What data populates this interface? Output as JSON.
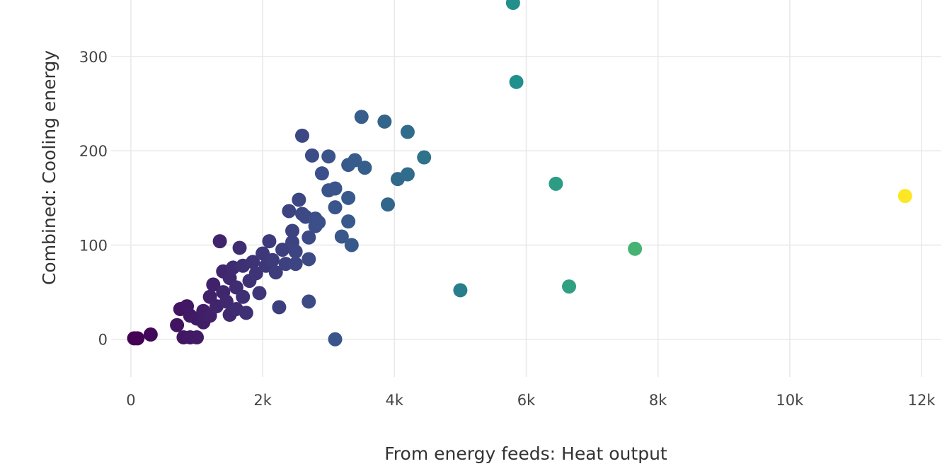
{
  "chart_data": {
    "type": "scatter",
    "xlabel": "From energy feeds: Heat output",
    "ylabel": "Combined: Cooling energy",
    "xlim": [
      -300,
      12300
    ],
    "ylim": [
      -40,
      360
    ],
    "grid": true,
    "x_ticks": [
      {
        "value": 0,
        "label": "0"
      },
      {
        "value": 2000,
        "label": "2k"
      },
      {
        "value": 4000,
        "label": "4k"
      },
      {
        "value": 6000,
        "label": "6k"
      },
      {
        "value": 8000,
        "label": "8k"
      },
      {
        "value": 10000,
        "label": "10k"
      },
      {
        "value": 12000,
        "label": "12k"
      }
    ],
    "y_ticks": [
      {
        "value": 0,
        "label": "0"
      },
      {
        "value": 100,
        "label": "100"
      },
      {
        "value": 200,
        "label": "200"
      },
      {
        "value": 300,
        "label": "300"
      }
    ],
    "color_scale": [
      "#440154",
      "#3b528b",
      "#21918c",
      "#5ec962",
      "#fde725"
    ],
    "points": [
      {
        "x": 50,
        "y": 1
      },
      {
        "x": 100,
        "y": 1
      },
      {
        "x": 300,
        "y": 5
      },
      {
        "x": 700,
        "y": 15
      },
      {
        "x": 750,
        "y": 32
      },
      {
        "x": 800,
        "y": 2
      },
      {
        "x": 850,
        "y": 35
      },
      {
        "x": 900,
        "y": 25
      },
      {
        "x": 900,
        "y": 2
      },
      {
        "x": 1000,
        "y": 22
      },
      {
        "x": 1000,
        "y": 2
      },
      {
        "x": 1100,
        "y": 30
      },
      {
        "x": 1100,
        "y": 18
      },
      {
        "x": 1200,
        "y": 45
      },
      {
        "x": 1200,
        "y": 25
      },
      {
        "x": 1250,
        "y": 58
      },
      {
        "x": 1300,
        "y": 35
      },
      {
        "x": 1350,
        "y": 104
      },
      {
        "x": 1400,
        "y": 72
      },
      {
        "x": 1400,
        "y": 50
      },
      {
        "x": 1450,
        "y": 40
      },
      {
        "x": 1500,
        "y": 65
      },
      {
        "x": 1500,
        "y": 26
      },
      {
        "x": 1550,
        "y": 76
      },
      {
        "x": 1600,
        "y": 55
      },
      {
        "x": 1600,
        "y": 32
      },
      {
        "x": 1650,
        "y": 97
      },
      {
        "x": 1700,
        "y": 78
      },
      {
        "x": 1700,
        "y": 45
      },
      {
        "x": 1750,
        "y": 28
      },
      {
        "x": 1800,
        "y": 62
      },
      {
        "x": 1850,
        "y": 82
      },
      {
        "x": 1900,
        "y": 70
      },
      {
        "x": 1950,
        "y": 49
      },
      {
        "x": 2000,
        "y": 91
      },
      {
        "x": 2050,
        "y": 78
      },
      {
        "x": 2100,
        "y": 104
      },
      {
        "x": 2150,
        "y": 84
      },
      {
        "x": 2200,
        "y": 71
      },
      {
        "x": 2250,
        "y": 34
      },
      {
        "x": 2300,
        "y": 95
      },
      {
        "x": 2350,
        "y": 80
      },
      {
        "x": 2400,
        "y": 136
      },
      {
        "x": 2450,
        "y": 115
      },
      {
        "x": 2450,
        "y": 103
      },
      {
        "x": 2500,
        "y": 93
      },
      {
        "x": 2500,
        "y": 80
      },
      {
        "x": 2550,
        "y": 148
      },
      {
        "x": 2600,
        "y": 216
      },
      {
        "x": 2600,
        "y": 133
      },
      {
        "x": 2650,
        "y": 130
      },
      {
        "x": 2700,
        "y": 108
      },
      {
        "x": 2700,
        "y": 85
      },
      {
        "x": 2700,
        "y": 40
      },
      {
        "x": 2750,
        "y": 195
      },
      {
        "x": 2800,
        "y": 128
      },
      {
        "x": 2800,
        "y": 120
      },
      {
        "x": 2850,
        "y": 124
      },
      {
        "x": 2900,
        "y": 176
      },
      {
        "x": 3000,
        "y": 194
      },
      {
        "x": 3000,
        "y": 158
      },
      {
        "x": 3100,
        "y": 0
      },
      {
        "x": 3100,
        "y": 140
      },
      {
        "x": 3100,
        "y": 160
      },
      {
        "x": 3200,
        "y": 109
      },
      {
        "x": 3300,
        "y": 185
      },
      {
        "x": 3300,
        "y": 150
      },
      {
        "x": 3300,
        "y": 125
      },
      {
        "x": 3350,
        "y": 100
      },
      {
        "x": 3400,
        "y": 190
      },
      {
        "x": 3500,
        "y": 236
      },
      {
        "x": 3550,
        "y": 182
      },
      {
        "x": 3850,
        "y": 231
      },
      {
        "x": 3900,
        "y": 143
      },
      {
        "x": 4050,
        "y": 170
      },
      {
        "x": 4200,
        "y": 220
      },
      {
        "x": 4200,
        "y": 175
      },
      {
        "x": 4450,
        "y": 193
      },
      {
        "x": 5000,
        "y": 52
      },
      {
        "x": 5800,
        "y": 357
      },
      {
        "x": 5850,
        "y": 273
      },
      {
        "x": 6450,
        "y": 165
      },
      {
        "x": 6650,
        "y": 56
      },
      {
        "x": 7650,
        "y": 96
      },
      {
        "x": 11750,
        "y": 152
      }
    ]
  }
}
